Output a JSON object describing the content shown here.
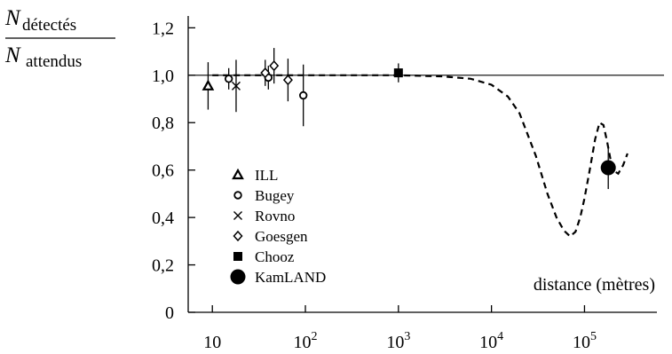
{
  "chart_data": {
    "type": "scatter",
    "x_scale": "log",
    "ylabel": {
      "numerator": {
        "symbol": "N",
        "subscript": "détectés"
      },
      "denominator": {
        "symbol": "N",
        "subscript": "attendus"
      }
    },
    "xlabel": "distance (mètres)",
    "ylim": [
      0,
      1.25
    ],
    "xlim": [
      5.5,
      600000
    ],
    "y_ticks": [
      {
        "value": 0,
        "label": "0"
      },
      {
        "value": 0.2,
        "label": "0,2"
      },
      {
        "value": 0.4,
        "label": "0,4"
      },
      {
        "value": 0.6,
        "label": "0,6"
      },
      {
        "value": 0.8,
        "label": "0,8"
      },
      {
        "value": 1.0,
        "label": "1,0"
      },
      {
        "value": 1.2,
        "label": "1,2"
      }
    ],
    "x_ticks": [
      {
        "value": 10,
        "base": "10",
        "exp": ""
      },
      {
        "value": 100,
        "base": "10",
        "exp": "2"
      },
      {
        "value": 1000,
        "base": "10",
        "exp": "3"
      },
      {
        "value": 10000,
        "base": "10",
        "exp": "4"
      },
      {
        "value": 100000,
        "base": "10",
        "exp": "5"
      }
    ],
    "reference_line": 1.0,
    "series": [
      {
        "name": "ILL",
        "marker": "triangle",
        "points": [
          {
            "x": 9,
            "y": 0.955,
            "err": 0.1
          }
        ]
      },
      {
        "name": "Bugey",
        "marker": "circle",
        "points": [
          {
            "x": 15,
            "y": 0.985,
            "err": 0.045
          },
          {
            "x": 40,
            "y": 0.99,
            "err": 0.05
          },
          {
            "x": 95,
            "y": 0.915,
            "err": 0.13
          }
        ]
      },
      {
        "name": "Rovno",
        "marker": "cross",
        "points": [
          {
            "x": 18,
            "y": 0.955,
            "err": 0.11
          }
        ]
      },
      {
        "name": "Goesgen",
        "marker": "diamond",
        "points": [
          {
            "x": 37,
            "y": 1.01,
            "err": 0.055
          },
          {
            "x": 46,
            "y": 1.04,
            "err": 0.075
          },
          {
            "x": 65,
            "y": 0.98,
            "err": 0.09
          }
        ]
      },
      {
        "name": "Chooz",
        "marker": "square",
        "points": [
          {
            "x": 1000,
            "y": 1.01,
            "err": 0.04
          }
        ]
      },
      {
        "name": "KamLAND",
        "marker": "bigcircle",
        "points": [
          {
            "x": 180000,
            "y": 0.61,
            "err": 0.09
          }
        ]
      }
    ],
    "prediction_curve": {
      "style": "dashed",
      "x": [
        10,
        30,
        100,
        300,
        1000,
        3000,
        6000,
        10000,
        15000,
        20000,
        30000,
        40000,
        50000,
        60000,
        70000,
        80000,
        90000,
        100000,
        115000,
        130000,
        145000,
        160000,
        175000,
        200000,
        230000,
        260000,
        290000
      ],
      "y": [
        1.0,
        1.0,
        1.0,
        1.0,
        1.0,
        0.995,
        0.985,
        0.96,
        0.91,
        0.84,
        0.66,
        0.5,
        0.4,
        0.345,
        0.32,
        0.34,
        0.4,
        0.48,
        0.61,
        0.73,
        0.8,
        0.79,
        0.72,
        0.6,
        0.585,
        0.62,
        0.67
      ]
    }
  }
}
